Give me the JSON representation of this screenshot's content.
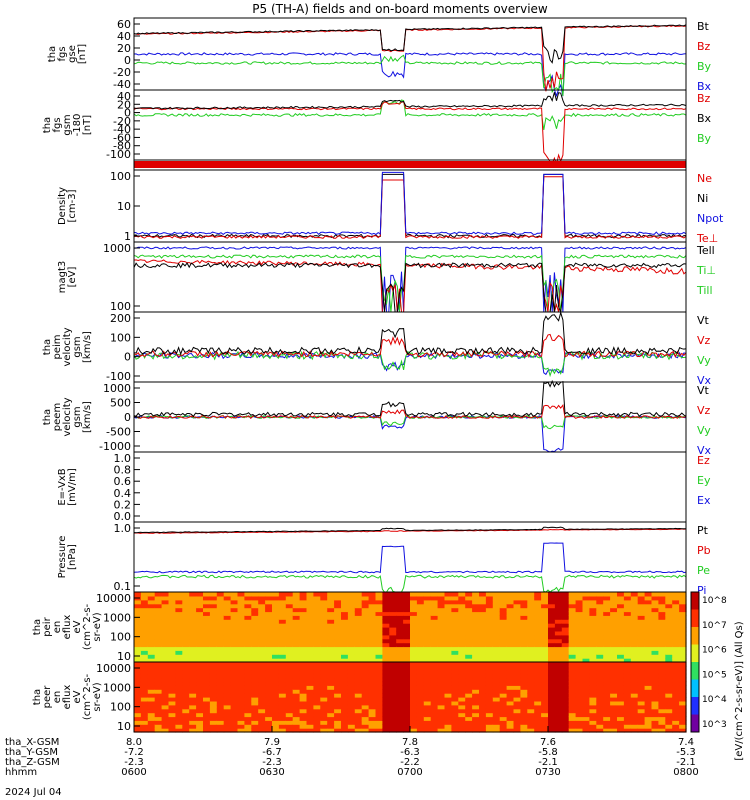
{
  "title": "P5 (TH-A) fields and on-board moments overview",
  "colors": {
    "black": "#000000",
    "red": "#e00000",
    "green": "#22cc22",
    "blue": "#1010e0"
  },
  "chart_data": {
    "type": "line",
    "x_ticks": [
      "0600",
      "0630",
      "0700",
      "0730",
      "0800"
    ],
    "date_label": "2024 Jul 04",
    "ephemeris": {
      "labels": [
        "tha_X-GSM",
        "tha_Y-GSM",
        "tha_Z-GSM",
        "hhmm"
      ],
      "x_gsm": [
        "8.0",
        "7.9",
        "7.8",
        "7.6",
        "7.4"
      ],
      "y_gsm": [
        "-7.2",
        "-6.7",
        "-6.3",
        "-5.8",
        "-5.3"
      ],
      "z_gsm": [
        "-2.3",
        "-2.3",
        "-2.2",
        "-2.1",
        "-2.1"
      ]
    },
    "panels": [
      {
        "id": "fgs_gse",
        "ylabel_lines": [
          "tha",
          "fgs",
          "gse",
          "[nT]"
        ],
        "ticks": [
          "60",
          "40",
          "20",
          "0",
          "-20",
          "-40"
        ],
        "ylim": [
          -45,
          75
        ],
        "scale": "linear",
        "legend": [
          {
            "text": "Bt",
            "color": "black"
          },
          {
            "text": "Bz",
            "color": "red"
          },
          {
            "text": "By",
            "color": "green"
          },
          {
            "text": "Bx",
            "color": "blue"
          }
        ],
        "series": [
          {
            "color": "blue",
            "level": 15,
            "noise": 2,
            "spikes": [
              [
                0.47,
                -18,
                12
              ],
              [
                0.76,
                -40,
                45
              ]
            ]
          },
          {
            "color": "green",
            "level": 0,
            "noise": 2,
            "spikes": [
              [
                0.47,
                8,
                -10
              ],
              [
                0.76,
                -35,
                40
              ]
            ]
          },
          {
            "color": "red",
            "level": 48,
            "noise": 1,
            "trend": 14,
            "spikes": [
              [
                0.47,
                20,
                0
              ],
              [
                0.76,
                -30,
                35
              ]
            ]
          },
          {
            "color": "black",
            "level": 49,
            "noise": 1,
            "trend": 14,
            "spikes": [
              [
                0.47,
                22,
                0
              ],
              [
                0.76,
                15,
                30
              ]
            ]
          }
        ]
      },
      {
        "id": "fgs_gsm",
        "ylabel_lines": [
          "tha",
          "fgs",
          "gsm",
          "-180",
          "[nT]"
        ],
        "ticks": [
          "40",
          "20",
          "0",
          "-20",
          "-40",
          "-60",
          "-80",
          "-100"
        ],
        "ylim": [
          -115,
          45
        ],
        "scale": "linear",
        "legend": [
          {
            "text": "Bz",
            "color": "red"
          },
          {
            "text": "Bx",
            "color": "black"
          },
          {
            "text": "By",
            "color": "green"
          }
        ],
        "series": [
          {
            "color": "green",
            "level": -12,
            "noise": 3,
            "spikes": [
              [
                0.47,
                18,
                -10
              ],
              [
                0.76,
                -30,
                35
              ]
            ]
          },
          {
            "color": "red",
            "level": 2,
            "noise": 2,
            "spikes": [
              [
                0.47,
                15,
                0
              ],
              [
                0.76,
                -110,
                30
              ]
            ]
          },
          {
            "color": "black",
            "level": 3,
            "noise": 2,
            "trend": 8,
            "spikes": [
              [
                0.47,
                20,
                5
              ],
              [
                0.76,
                30,
                20
              ]
            ]
          }
        ]
      },
      {
        "id": "flag",
        "ylabel_lines": [],
        "ticks": [],
        "legend": [],
        "series": []
      },
      {
        "id": "density",
        "ylabel_lines": [
          "Density",
          "[cm-3]"
        ],
        "ticks": [
          "100",
          "10",
          "1"
        ],
        "ylim": [
          0.2,
          150
        ],
        "scale": "log",
        "legend": [
          {
            "text": "Ne",
            "color": "red"
          },
          {
            "text": "Ni",
            "color": "black"
          },
          {
            "text": "Npot",
            "color": "blue"
          },
          {
            "text": "Te⊥",
            "color": "red"
          }
        ],
        "series": [
          {
            "color": "black",
            "level": 0.35,
            "noise": 0.05,
            "spikes": [
              [
                0.47,
                100,
                0
              ],
              [
                0.76,
                100,
                0
              ]
            ]
          },
          {
            "color": "red",
            "level": 0.32,
            "noise": 0.04,
            "spikes": [
              [
                0.47,
                60,
                0
              ],
              [
                0.76,
                80,
                0
              ]
            ]
          },
          {
            "color": "blue",
            "level": 0.45,
            "noise": 0.05,
            "spikes": [
              [
                0.47,
                120,
                0
              ],
              [
                0.76,
                100,
                0
              ]
            ]
          }
        ]
      },
      {
        "id": "temperature",
        "ylabel_lines": [
          "magt3",
          "[eV]"
        ],
        "ticks": [
          "1000",
          "100"
        ],
        "ylim": [
          25,
          4000
        ],
        "scale": "log",
        "legend": [
          {
            "text": "Tell",
            "color": "black"
          },
          {
            "text": "Ti⊥",
            "color": "green"
          },
          {
            "text": "Till",
            "color": "green"
          }
        ],
        "series": [
          {
            "color": "blue",
            "level": 2600,
            "noise": 200,
            "spikes": [
              [
                0.47,
                200,
                0
              ],
              [
                0.76,
                150,
                0
              ]
            ]
          },
          {
            "color": "green",
            "level": 1400,
            "noise": 150,
            "spikes": [
              [
                0.47,
                90,
                0
              ],
              [
                0.76,
                80,
                0
              ]
            ]
          },
          {
            "color": "red",
            "level": 1000,
            "noise": 120,
            "trend": -500,
            "spikes": [
              [
                0.47,
                40,
                0
              ],
              [
                0.76,
                35,
                0
              ]
            ]
          },
          {
            "color": "black",
            "level": 750,
            "noise": 120,
            "spikes": [
              [
                0.47,
                30,
                0
              ],
              [
                0.76,
                30,
                0
              ]
            ]
          }
        ]
      },
      {
        "id": "peim_velocity",
        "ylabel_lines": [
          "tha",
          "peim",
          "velocity",
          "gsm",
          "[km/s]"
        ],
        "ticks": [
          "200",
          "100",
          "0",
          "-100"
        ],
        "ylim": [
          -140,
          230
        ],
        "scale": "linear",
        "legend": [
          {
            "text": "Vt",
            "color": "black"
          },
          {
            "text": "Vz",
            "color": "red"
          },
          {
            "text": "Vy",
            "color": "green"
          },
          {
            "text": "Vx",
            "color": "blue"
          }
        ],
        "series": [
          {
            "color": "blue",
            "level": 0,
            "noise": 15,
            "spikes": [
              [
                0.47,
                -60,
                0
              ],
              [
                0.76,
                -90,
                0
              ]
            ]
          },
          {
            "color": "green",
            "level": 0,
            "noise": 20,
            "spikes": [
              [
                0.47,
                -50,
                0
              ],
              [
                0.76,
                -80,
                0
              ]
            ]
          },
          {
            "color": "red",
            "level": 8,
            "noise": 15,
            "spikes": [
              [
                0.47,
                80,
                0
              ],
              [
                0.76,
                100,
                0
              ]
            ]
          },
          {
            "color": "black",
            "level": 25,
            "noise": 18,
            "spikes": [
              [
                0.47,
                120,
                0
              ],
              [
                0.76,
                200,
                0
              ]
            ]
          }
        ]
      },
      {
        "id": "peem_velocity",
        "ylabel_lines": [
          "tha",
          "peem",
          "velocity",
          "gsm",
          "[km/s]"
        ],
        "ticks": [
          "1000",
          "500",
          "0",
          "-500",
          "-1000"
        ],
        "ylim": [
          -1050,
          1050
        ],
        "scale": "linear",
        "legend": [
          {
            "text": "Vt",
            "color": "black"
          },
          {
            "text": "Vz",
            "color": "red"
          },
          {
            "text": "Vy",
            "color": "green"
          },
          {
            "text": "Vx",
            "color": "blue"
          }
        ],
        "series": [
          {
            "color": "blue",
            "level": 0,
            "noise": 40,
            "spikes": [
              [
                0.47,
                -300,
                0
              ],
              [
                0.76,
                -1000,
                0
              ]
            ]
          },
          {
            "color": "green",
            "level": 0,
            "noise": 40,
            "spikes": [
              [
                0.47,
                -200,
                0
              ],
              [
                0.76,
                -300,
                0
              ]
            ]
          },
          {
            "color": "red",
            "level": 0,
            "noise": 40,
            "spikes": [
              [
                0.47,
                150,
                0
              ],
              [
                0.76,
                300,
                0
              ]
            ]
          },
          {
            "color": "black",
            "level": 80,
            "noise": 60,
            "spikes": [
              [
                0.47,
                400,
                0
              ],
              [
                0.76,
                1000,
                0
              ]
            ]
          }
        ]
      },
      {
        "id": "efield",
        "ylabel_lines": [
          "E=-VxB",
          "[mV/m]"
        ],
        "ticks": [
          "1.0",
          "0.8",
          "0.6",
          "0.4",
          "0.2",
          "0.0"
        ],
        "ylim": [
          -0.05,
          1.05
        ],
        "scale": "linear",
        "legend": [
          {
            "text": "Ez",
            "color": "red"
          },
          {
            "text": "Ey",
            "color": "green"
          },
          {
            "text": "Ex",
            "color": "blue"
          }
        ],
        "series": []
      },
      {
        "id": "pressure",
        "ylabel_lines": [
          "Pressure",
          "[nPa]"
        ],
        "ticks": [
          "1.0",
          "0.1"
        ],
        "ylim": [
          0.02,
          2.0
        ],
        "scale": "log",
        "legend": [
          {
            "text": "Pt",
            "color": "black"
          },
          {
            "text": "Pb",
            "color": "red"
          },
          {
            "text": "Pe",
            "color": "green"
          },
          {
            "text": "Pi",
            "color": "blue"
          }
        ],
        "series": [
          {
            "color": "green",
            "level": 0.055,
            "noise": 0.005,
            "spikes": [
              [
                0.47,
                0.02,
                0
              ],
              [
                0.76,
                0.02,
                0
              ]
            ]
          },
          {
            "color": "blue",
            "level": 0.075,
            "noise": 0.004,
            "spikes": [
              [
                0.47,
                0.4,
                0
              ],
              [
                0.76,
                0.5,
                0
              ]
            ]
          },
          {
            "color": "red",
            "level": 0.95,
            "noise": 0.02,
            "trend": 0.3,
            "spikes": [
              [
                0.47,
                1.1,
                0
              ],
              [
                0.76,
                1.2,
                0
              ]
            ]
          },
          {
            "color": "black",
            "level": 1.0,
            "noise": 0.02,
            "trend": 0.3,
            "spikes": [
              [
                0.47,
                1.3,
                0
              ],
              [
                0.76,
                1.4,
                0
              ]
            ]
          }
        ]
      },
      {
        "id": "peir_spec",
        "type": "heatmap",
        "ylabel_lines": [
          "tha",
          "peir",
          "en",
          "eflux",
          "eV",
          "(cm^2-s-",
          "sr-eV)"
        ],
        "ticks": [
          "10000",
          "1000",
          "100",
          "10"
        ],
        "ylim": [
          6,
          20000
        ],
        "scale": "log",
        "legend": [],
        "series": []
      },
      {
        "id": "peer_spec",
        "type": "heatmap",
        "ylabel_lines": [
          "tha",
          "peer",
          "en",
          "eflux",
          "eV",
          "(cm^2-s-",
          "sr-eV)"
        ],
        "ticks": [
          "10000",
          "1000",
          "100",
          "10"
        ],
        "ylim": [
          6,
          20000
        ],
        "scale": "log",
        "legend": [],
        "series": []
      }
    ],
    "colorbar": {
      "label": "[eV/(cm^2-s-sr-eV)] (All Qs)",
      "ticks": [
        "10^8",
        "10^7",
        "10^6",
        "10^5",
        "10^4",
        "10^3"
      ]
    }
  }
}
